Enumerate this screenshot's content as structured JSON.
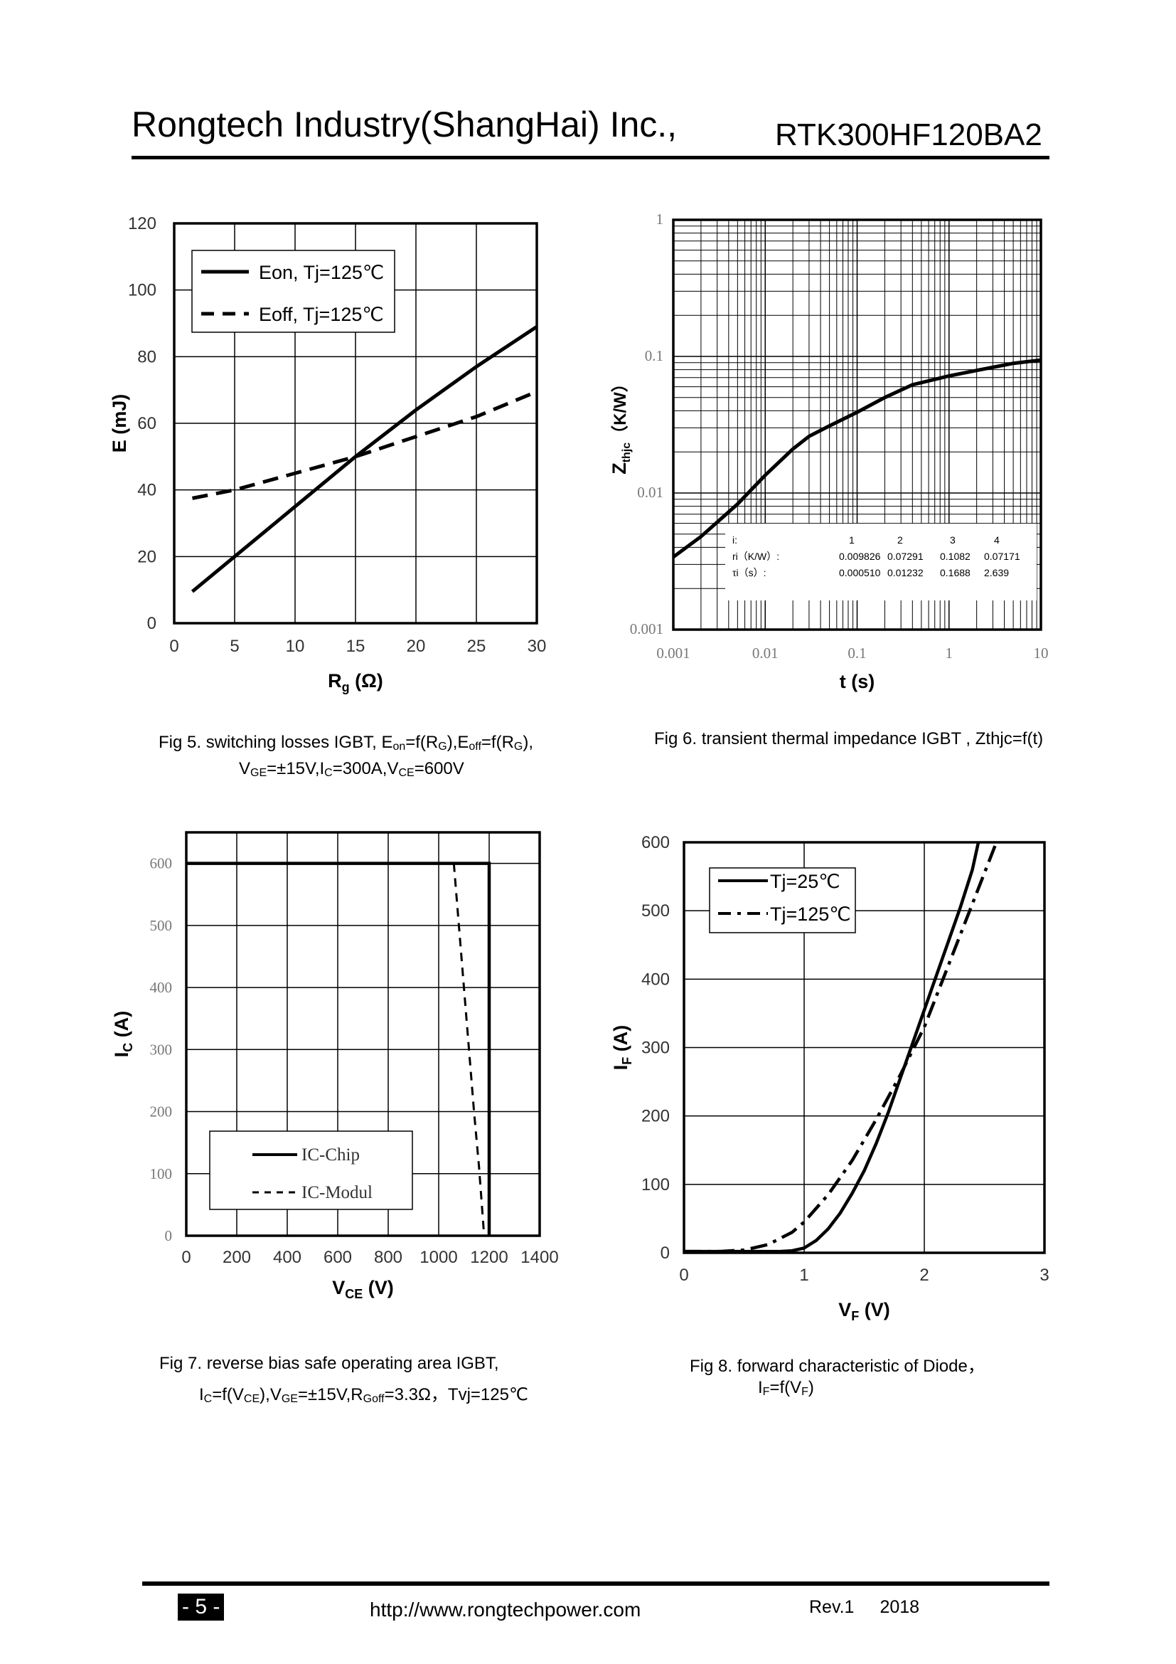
{
  "header": {
    "company": "Rongtech Industry(ShangHai) Inc.,",
    "part_number": "RTK300HF120BA2"
  },
  "figures": [
    {
      "caption_line1_parts": [
        "Fig 5. switching losses IGBT, E",
        "on",
        "=f(R",
        "G",
        "),E",
        "off",
        "=f(R",
        "G",
        "),"
      ],
      "caption_line2_parts": [
        "V",
        "GE",
        "=±15V,I",
        "C",
        "=300A,V",
        "CE",
        "=600V"
      ]
    },
    {
      "caption_line1_parts": [
        "Fig 6. transient thermal impedance IGBT , Zthjc=f(t)"
      ],
      "caption_line2_parts": []
    },
    {
      "caption_line1_parts": [
        "Fig 7. reverse bias safe operating area IGBT,"
      ],
      "caption_line2_parts": [
        "I",
        "C",
        "=f(V",
        "CE",
        "),V",
        "GE",
        "=±15V,R",
        "Goff",
        "=3.3Ω，Tvj=125℃"
      ]
    },
    {
      "caption_line1_parts": [
        "Fig 8. forward characteristic of  Diode，"
      ],
      "caption_line2_parts": [
        "I",
        "F",
        "=f(V",
        "F",
        ")"
      ]
    }
  ],
  "chart_data": [
    {
      "type": "line",
      "xlabel_main": "R",
      "xlabel_sub": "g",
      "xlabel_unit": " (Ω)",
      "ylabel": "E (mJ)",
      "xlim": [
        0,
        30
      ],
      "ylim": [
        0,
        120
      ],
      "x_ticks": [
        0,
        5,
        10,
        15,
        20,
        25,
        30
      ],
      "y_ticks": [
        0,
        20,
        40,
        60,
        80,
        100,
        120
      ],
      "legend_position": "top-left",
      "series": [
        {
          "name": "Eon, Tj=125℃",
          "style": "solid",
          "x": [
            1.5,
            5,
            10,
            15,
            20,
            25,
            30
          ],
          "y": [
            9.5,
            20,
            35,
            50,
            64,
            77,
            89
          ]
        },
        {
          "name": "Eoff, Tj=125℃",
          "style": "dashed",
          "x": [
            1.5,
            5,
            10,
            15,
            20,
            25,
            30
          ],
          "y": [
            37.5,
            40,
            45,
            50,
            56,
            62,
            69.5
          ]
        }
      ]
    },
    {
      "type": "line",
      "xscale": "log",
      "yscale": "log",
      "xlabel": "t (s)",
      "ylabel_main": "Z",
      "ylabel_sub": "thjc",
      "ylabel_unit": "（K/W）",
      "xlim": [
        0.001,
        10
      ],
      "ylim": [
        0.001,
        1
      ],
      "x_tick_labels": [
        "0.001",
        "0.01",
        "0.1",
        "1",
        "10"
      ],
      "y_tick_labels": [
        "0.001",
        "0.01",
        "0.1",
        "1"
      ],
      "series": [
        {
          "name": "Zthjc",
          "style": "solid",
          "x": [
            0.001,
            0.002,
            0.005,
            0.01,
            0.02,
            0.03,
            0.05,
            0.1,
            0.2,
            0.4,
            1,
            2,
            5,
            10
          ],
          "y": [
            0.0034,
            0.0048,
            0.0083,
            0.0135,
            0.021,
            0.026,
            0.031,
            0.039,
            0.05,
            0.062,
            0.072,
            0.079,
            0.089,
            0.094
          ]
        }
      ],
      "table": {
        "header": [
          "i:",
          "1",
          "2",
          "3",
          "4"
        ],
        "rows": [
          [
            "ri（K/W）:",
            "0.009826",
            "0.07291",
            "0.1082",
            "0.07171"
          ],
          [
            "τi（s）:",
            "0.000510",
            "0.01232",
            "0.1688",
            "2.639"
          ]
        ]
      }
    },
    {
      "type": "line",
      "xlabel_main": "V",
      "xlabel_sub": "CE",
      "xlabel_unit": " (V)",
      "ylabel_main": "I",
      "ylabel_sub": "C",
      "ylabel_unit": " (A)",
      "xlim": [
        0,
        1400
      ],
      "ylim": [
        0,
        650
      ],
      "x_ticks": [
        0,
        200,
        400,
        600,
        800,
        1000,
        1200,
        1400
      ],
      "y_ticks": [
        0,
        100,
        200,
        300,
        400,
        500,
        600
      ],
      "legend_position": "bottom-left",
      "series": [
        {
          "name": "IC-Chip",
          "style": "solid",
          "x": [
            0,
            1200,
            1200
          ],
          "y": [
            600,
            600,
            0
          ]
        },
        {
          "name": "IC-Modul",
          "style": "dashed",
          "x": [
            1060,
            1080,
            1100,
            1120,
            1140,
            1160,
            1180
          ],
          "y": [
            600,
            500,
            400,
            300,
            200,
            110,
            0
          ]
        }
      ]
    },
    {
      "type": "line",
      "xlabel_main": "V",
      "xlabel_sub": "F",
      "xlabel_unit": " (V)",
      "ylabel_main": "I",
      "ylabel_sub": "F",
      "ylabel_unit": " (A)",
      "xlim": [
        0,
        3
      ],
      "ylim": [
        0,
        600
      ],
      "x_ticks": [
        0,
        1,
        2,
        3
      ],
      "y_ticks": [
        0,
        100,
        200,
        300,
        400,
        500,
        600
      ],
      "legend_position": "top-right",
      "series": [
        {
          "name": "Tj=25℃",
          "style": "solid",
          "x": [
            0,
            0.5,
            0.8,
            0.9,
            1.0,
            1.1,
            1.2,
            1.3,
            1.4,
            1.5,
            1.6,
            1.7,
            1.8,
            1.9,
            2.0,
            2.1,
            2.2,
            2.3,
            2.4,
            2.45
          ],
          "y": [
            2,
            2,
            2,
            3,
            7,
            18,
            35,
            58,
            87,
            120,
            160,
            205,
            255,
            305,
            355,
            405,
            455,
            505,
            560,
            600
          ]
        },
        {
          "name": "Tj=125℃",
          "style": "dashdot",
          "x": [
            0,
            0.3,
            0.5,
            0.7,
            0.9,
            1.0,
            1.2,
            1.4,
            1.6,
            1.8,
            2.0,
            2.2,
            2.4,
            2.6
          ],
          "y": [
            2,
            2,
            4,
            12,
            30,
            45,
            85,
            135,
            195,
            260,
            330,
            420,
            510,
            600
          ]
        }
      ]
    }
  ],
  "footer": {
    "page": "- 5 -",
    "url": "http://www.rongtechpower.com",
    "rev": "Rev.1",
    "year": "2018"
  }
}
